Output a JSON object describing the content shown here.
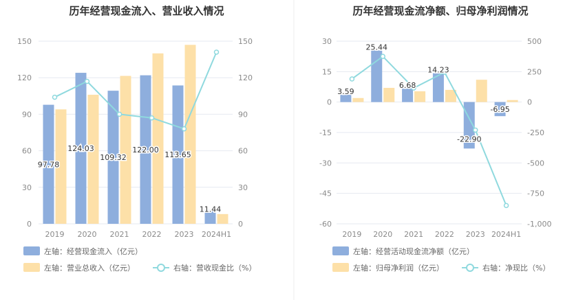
{
  "chart_data": [
    {
      "type": "bar",
      "title": "历年经营现金流入、营业收入情况",
      "categories": [
        "2019",
        "2020",
        "2021",
        "2022",
        "2023",
        "2024H1"
      ],
      "left_axis": {
        "min": 0,
        "max": 150,
        "ticks": [
          "0",
          "30",
          "60",
          "90",
          "120",
          "150"
        ]
      },
      "right_axis": {
        "min": 0,
        "max": 150,
        "ticks": [
          "0",
          "30",
          "60",
          "90",
          "120",
          "150"
        ]
      },
      "series": [
        {
          "name": "左轴：经营现金流入（亿元）",
          "kind": "bar",
          "axis": "left",
          "color": "#8eaedd",
          "values": [
            97.78,
            124.03,
            109.32,
            122.0,
            113.65,
            11.44
          ],
          "labels": [
            "97.78",
            "124.03",
            "109.32",
            "122.00",
            "113.65",
            "11.44"
          ]
        },
        {
          "name": "左轴：营业总收入（亿元）",
          "kind": "bar",
          "axis": "left",
          "color": "#fde0a8",
          "values": [
            94,
            106,
            121.5,
            140,
            147,
            8
          ]
        },
        {
          "name": "右轴：营收现金比（%）",
          "kind": "line",
          "axis": "right",
          "color": "#8fd9de",
          "values": [
            104,
            117,
            90,
            87,
            78,
            141
          ]
        }
      ]
    },
    {
      "type": "bar",
      "title": "历年经营现金流净额、归母净利润情况",
      "categories": [
        "2019",
        "2020",
        "2021",
        "2022",
        "2023",
        "2024H1"
      ],
      "left_axis": {
        "min": -60,
        "max": 30,
        "ticks": [
          "-60",
          "-45",
          "-30",
          "-15",
          "0",
          "15",
          "30"
        ]
      },
      "right_axis": {
        "min": -1000,
        "max": 500,
        "ticks": [
          "-1,000",
          "-750",
          "-500",
          "-250",
          "0",
          "250",
          "500"
        ]
      },
      "series": [
        {
          "name": "左轴：经营活动现金流净额（亿元）",
          "kind": "bar",
          "axis": "left",
          "color": "#8eaedd",
          "values": [
            3.59,
            25.44,
            6.68,
            14.23,
            -22.9,
            -6.95
          ],
          "labels": [
            "3.59",
            "25.44",
            "6.68",
            "14.23",
            "-22.90",
            "-6.95"
          ]
        },
        {
          "name": "左轴：归母净利润（亿元）",
          "kind": "bar",
          "axis": "left",
          "color": "#fde0a8",
          "values": [
            2,
            7,
            5.3,
            6,
            11,
            1
          ]
        },
        {
          "name": "右轴：净现比（%）",
          "kind": "line",
          "axis": "right",
          "color": "#8fd9de",
          "values": [
            190,
            375,
            115,
            245,
            -230,
            -850
          ]
        }
      ]
    }
  ]
}
